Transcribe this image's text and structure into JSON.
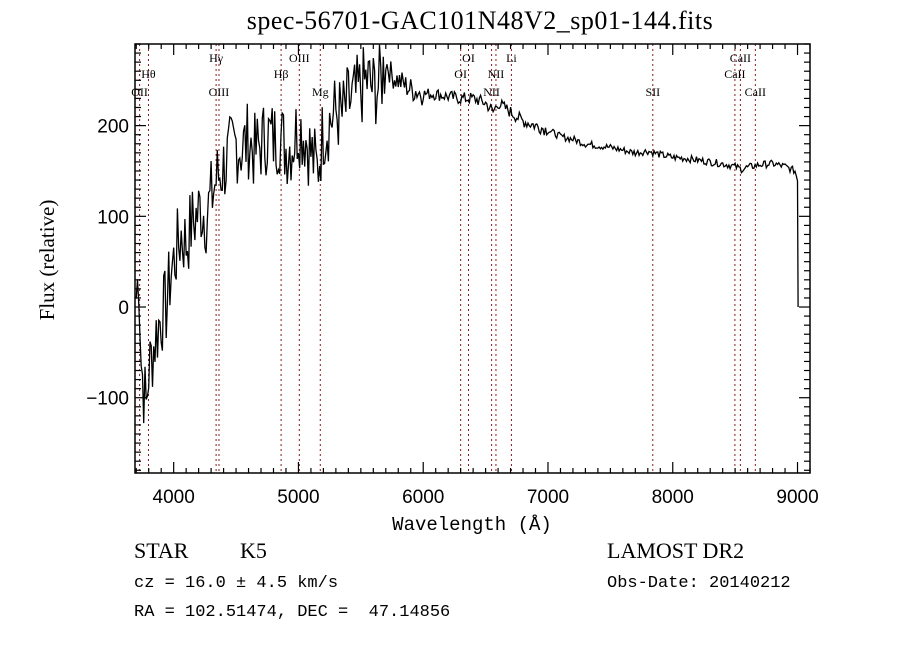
{
  "chart_data": {
    "type": "line",
    "title": "spec-56701-GAC101N48V2_sp01-144.fits",
    "xlabel": "Wavelength (Å)",
    "ylabel": "Flux (relative)",
    "xlim": [
      3690,
      9100
    ],
    "ylim": [
      -183,
      290
    ],
    "xticks": [
      4000,
      5000,
      6000,
      7000,
      8000,
      9000
    ],
    "xtick_labels": [
      "4000",
      "5000",
      "6000",
      "7000",
      "8000",
      "9000"
    ],
    "yticks": [
      -100,
      0,
      100,
      200
    ],
    "ytick_labels": [
      "−100",
      "0",
      "100",
      "200"
    ],
    "grid": false,
    "series": [
      {
        "name": "spectrum",
        "x": [
          3700,
          3720,
          3740,
          3760,
          3780,
          3800,
          3830,
          3860,
          3900,
          3940,
          3980,
          4020,
          4060,
          4100,
          4140,
          4180,
          4220,
          4260,
          4300,
          4340,
          4380,
          4420,
          4460,
          4500,
          4550,
          4600,
          4650,
          4700,
          4750,
          4800,
          4850,
          4900,
          4950,
          5000,
          5050,
          5100,
          5150,
          5200,
          5250,
          5300,
          5350,
          5400,
          5450,
          5500,
          5550,
          5600,
          5650,
          5700,
          5750,
          5800,
          5850,
          5900,
          5950,
          6000,
          6100,
          6200,
          6300,
          6400,
          6500,
          6560,
          6600,
          6700,
          6800,
          6900,
          7000,
          7100,
          7200,
          7300,
          7400,
          7500,
          7600,
          7700,
          7800,
          7900,
          8000,
          8100,
          8200,
          8300,
          8400,
          8500,
          8550,
          8600,
          8700,
          8800,
          8900,
          8980,
          9000,
          9005
        ],
        "y": [
          10,
          40,
          -60,
          -90,
          -110,
          -70,
          -50,
          -30,
          -10,
          0,
          40,
          60,
          80,
          70,
          90,
          100,
          110,
          100,
          120,
          140,
          150,
          160,
          170,
          180,
          175,
          185,
          170,
          180,
          190,
          185,
          190,
          175,
          180,
          200,
          190,
          170,
          150,
          195,
          205,
          215,
          210,
          225,
          230,
          240,
          250,
          240,
          245,
          270,
          255,
          250,
          245,
          240,
          238,
          235,
          235,
          232,
          230,
          230,
          225,
          215,
          225,
          215,
          205,
          200,
          195,
          188,
          185,
          180,
          178,
          176,
          173,
          170,
          172,
          168,
          165,
          164,
          162,
          160,
          158,
          155,
          152,
          154,
          157,
          158,
          155,
          150,
          140,
          0
        ]
      }
    ],
    "line_markers": [
      {
        "label": "OII",
        "wavelength": 3727,
        "row": 3
      },
      {
        "label": "Hθ",
        "wavelength": 3798,
        "row": 2
      },
      {
        "label": "Hγ",
        "wavelength": 4340,
        "row": 1
      },
      {
        "label": "OIII",
        "wavelength": 4363,
        "row": 3
      },
      {
        "label": "Hβ",
        "wavelength": 4861,
        "row": 2
      },
      {
        "label": "OIII",
        "wavelength": 5007,
        "row": 1
      },
      {
        "label": "Mg",
        "wavelength": 5175,
        "row": 3
      },
      {
        "label": "OI",
        "wavelength": 6300,
        "row": 2
      },
      {
        "label": "OI",
        "wavelength": 6363,
        "row": 1
      },
      {
        "label": "NII",
        "wavelength": 6548,
        "row": 3
      },
      {
        "label": "NII",
        "wavelength": 6583,
        "row": 2
      },
      {
        "label": "Li",
        "wavelength": 6707,
        "row": 1
      },
      {
        "label": "SII",
        "wavelength": 7840,
        "row": 3
      },
      {
        "label": "CaII",
        "wavelength": 8498,
        "row": 2
      },
      {
        "label": "CaII",
        "wavelength": 8542,
        "row": 1
      },
      {
        "label": "CaII",
        "wavelength": 8662,
        "row": 3
      }
    ],
    "marker_color": "#8b1a1a",
    "line_color": "#000000"
  },
  "info": {
    "object_class": "STAR",
    "subclass": "K5",
    "cz": "cz = 16.0 ± 4.5 km/s",
    "coords": "RA = 102.51474, DEC =  47.14856",
    "survey": "LAMOST DR2",
    "obs_date": "Obs-Date: 20140212"
  }
}
